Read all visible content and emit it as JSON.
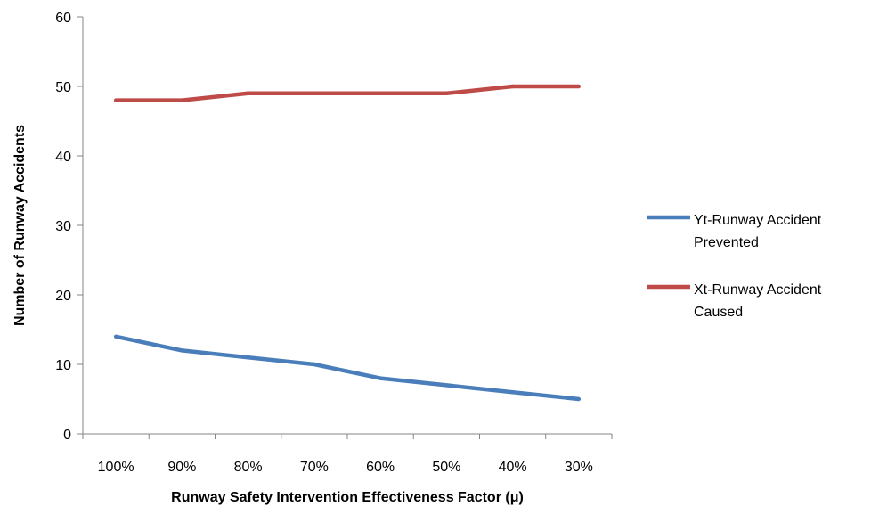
{
  "chart_data": {
    "type": "line",
    "title": "",
    "xlabel": "Runway Safety Intervention Effectiveness Factor (μ)",
    "ylabel": "Number of Runway Accidents",
    "categories": [
      "100%",
      "90%",
      "80%",
      "70%",
      "60%",
      "50%",
      "40%",
      "30%"
    ],
    "ylim": [
      0,
      60
    ],
    "yticks": [
      0,
      10,
      20,
      30,
      40,
      50,
      60
    ],
    "grid": false,
    "legend_position": "right",
    "series": [
      {
        "name_lines": [
          "Yt-Runway Accident",
          "Prevented"
        ],
        "color": "#4a7ebb",
        "values": [
          14,
          12,
          11,
          10,
          8,
          7,
          6,
          5
        ]
      },
      {
        "name_lines": [
          "Xt-Runway Accident",
          "Caused"
        ],
        "color": "#be4b48",
        "values": [
          48,
          48,
          49,
          49,
          49,
          49,
          50,
          50
        ]
      }
    ]
  }
}
